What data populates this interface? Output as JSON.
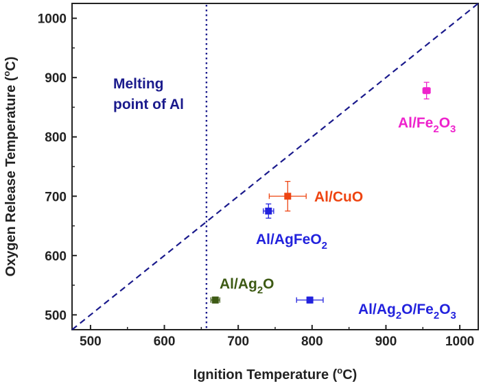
{
  "chart_data": {
    "type": "scatter",
    "xlabel": "Ignition Temperature (",
    "xlabel_sup": "o",
    "xlabel_tail": "C)",
    "ylabel": "Oxygen Release Temperature (",
    "ylabel_sup": "o",
    "ylabel_tail": "C)",
    "xlim": [
      475,
      1025
    ],
    "ylim": [
      475,
      1025
    ],
    "xticks": [
      500,
      600,
      700,
      800,
      900,
      1000
    ],
    "yticks": [
      500,
      600,
      700,
      800,
      900,
      1000
    ],
    "xtick_labels": [
      "500",
      "600",
      "700",
      "800",
      "900",
      "1000"
    ],
    "ytick_labels": [
      "500",
      "600",
      "700",
      "800",
      "900",
      "1000"
    ],
    "reference_line": {
      "style": "dashed",
      "color": "#1a1a8c",
      "relation": "y = x"
    },
    "melting_line": {
      "x": 657,
      "style": "dotted",
      "color": "#1a1a8c",
      "label_line1": "Melting",
      "label_line2": "point of Al"
    },
    "points": [
      {
        "label": "Al/Fe2O3",
        "label_parts": [
          [
            "Al/Fe",
            ""
          ],
          [
            "2",
            "sub"
          ],
          [
            "O",
            ""
          ],
          [
            "3",
            "sub"
          ]
        ],
        "x": 955,
        "y": 878,
        "xerr": 5,
        "yerr": 14,
        "color": "#ee22cc"
      },
      {
        "label": "Al/CuO",
        "label_parts": [
          [
            "Al/CuO",
            ""
          ]
        ],
        "x": 767,
        "y": 700,
        "xerr": 25,
        "yerr": 25,
        "color": "#ee4411"
      },
      {
        "label": "Al/AgFeO2",
        "label_parts": [
          [
            "Al/AgFeO",
            ""
          ],
          [
            "2",
            "sub"
          ]
        ],
        "x": 741,
        "y": 675,
        "xerr": 7,
        "yerr": 12,
        "color": "#2222dd"
      },
      {
        "label": "Al/Ag2O",
        "label_parts": [
          [
            "Al/Ag",
            ""
          ],
          [
            "2",
            "sub"
          ],
          [
            "O",
            ""
          ]
        ],
        "x": 669,
        "y": 525,
        "xerr": 6,
        "yerr": 5,
        "color": "#3d5a14"
      },
      {
        "label": "Al/Ag2O/Fe2O3",
        "label_parts": [
          [
            "Al/Ag",
            ""
          ],
          [
            "2",
            "sub"
          ],
          [
            "O/Fe",
            ""
          ],
          [
            "2",
            "sub"
          ],
          [
            "O",
            ""
          ],
          [
            "3",
            "sub"
          ]
        ],
        "x": 797,
        "y": 525,
        "xerr": 18,
        "yerr": 5,
        "color": "#2222dd"
      }
    ]
  }
}
